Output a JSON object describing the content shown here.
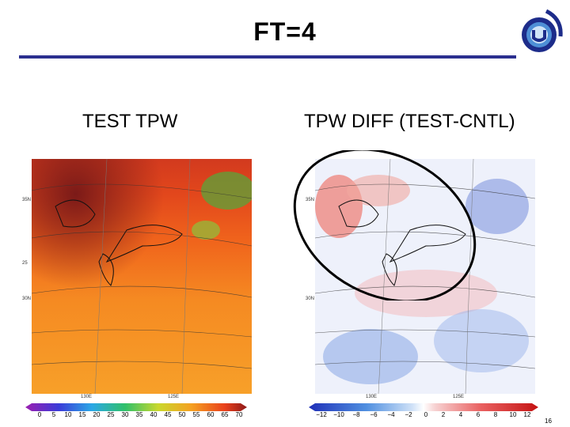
{
  "slide": {
    "title": "FT=4",
    "page_number": "16",
    "accent_color": "#2b2f8f"
  },
  "left_panel": {
    "label": "TEST  TPW",
    "colorbar_ticks": [
      "0",
      "5",
      "10",
      "15",
      "20",
      "25",
      "30",
      "35",
      "40",
      "45",
      "50",
      "55",
      "60",
      "65",
      "70"
    ],
    "lat_labels": [
      "35N",
      "30N",
      "25"
    ],
    "lon_labels": [
      "130E",
      "125E"
    ]
  },
  "right_panel": {
    "label": "TPW DIFF (TEST-CNTL)",
    "colorbar_ticks": [
      "−12",
      "−10",
      "−8",
      "−6",
      "−4",
      "−2",
      "0",
      "2",
      "4",
      "6",
      "8",
      "10",
      "12"
    ],
    "lat_labels": [
      "35N",
      "30N"
    ],
    "lon_labels": [
      "130E",
      "125E"
    ]
  },
  "logo": {
    "icon": "organization-logo-icon"
  }
}
